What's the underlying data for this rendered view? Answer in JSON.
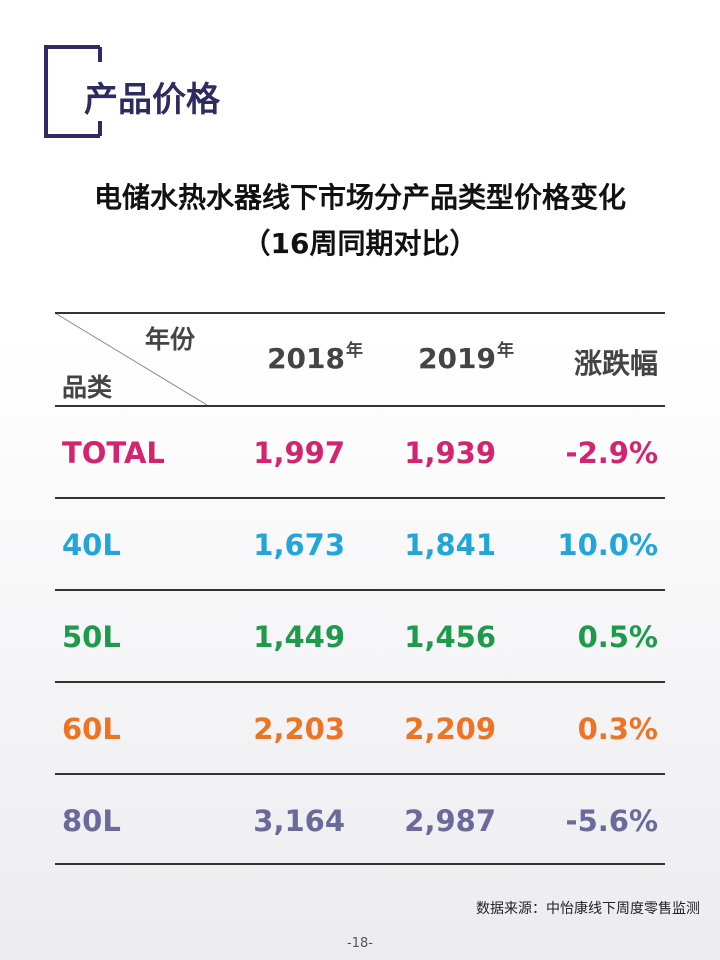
{
  "header": {
    "section_title": "产品价格"
  },
  "title": {
    "line1": "电储水热水器线下市场分产品类型价格变化",
    "line2": "（16周同期对比）"
  },
  "table": {
    "corner": {
      "top": "年份",
      "bottom": "品类"
    },
    "columns": [
      {
        "year": "2018",
        "suffix": "年"
      },
      {
        "year": "2019",
        "suffix": "年"
      },
      {
        "label": "涨跌幅"
      }
    ],
    "rows": [
      {
        "name": "TOTAL",
        "cells": [
          "1,997",
          "1,939",
          "-2.9%"
        ],
        "color": "#d4246f"
      },
      {
        "name": "40L",
        "cells": [
          "1,673",
          "1,841",
          "10.0%"
        ],
        "color": "#22a6da"
      },
      {
        "name": "50L",
        "cells": [
          "1,449",
          "1,456",
          "0.5%"
        ],
        "color": "#1c9b4b"
      },
      {
        "name": "60L",
        "cells": [
          "2,203",
          "2,209",
          "0.3%"
        ],
        "color": "#ec7424"
      },
      {
        "name": "80L",
        "cells": [
          "3,164",
          "2,987",
          "-5.6%"
        ],
        "color": "#6b6a9b"
      }
    ]
  },
  "footer": {
    "source": "数据来源：中怡康线下周度零售监测",
    "page": "-18-"
  }
}
